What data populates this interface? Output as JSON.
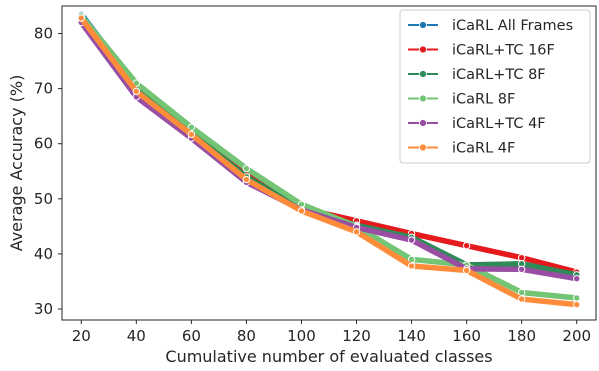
{
  "chart_data": {
    "type": "line",
    "xlabel": "Cumulative number of evaluated classes",
    "ylabel": "Average Accuracy (%)",
    "x": [
      20,
      40,
      60,
      80,
      100,
      120,
      140,
      160,
      180,
      200
    ],
    "xlim": [
      13,
      207
    ],
    "ylim": [
      28,
      85
    ],
    "xticks": [
      20,
      40,
      60,
      80,
      100,
      120,
      140,
      160,
      180,
      200
    ],
    "yticks": [
      30,
      40,
      50,
      60,
      70,
      80
    ],
    "grid": false,
    "legend_position": "top-right",
    "series": [
      {
        "name": "iCaRL All Frames",
        "color": "#1f77b4",
        "values": [
          83.5,
          70.5,
          62.5,
          54.5,
          48.5,
          45.5,
          43.0,
          38.0,
          38.0,
          36.5
        ]
      },
      {
        "name": "iCaRL+TC 16F",
        "color": "#e41a1c",
        "values": [
          83.0,
          70.5,
          62.5,
          54.5,
          48.3,
          46.0,
          43.7,
          41.5,
          39.3,
          36.7
        ]
      },
      {
        "name": "iCaRL+TC 8F",
        "color": "#2e8b57",
        "values": [
          82.5,
          70.0,
          62.0,
          54.0,
          48.2,
          45.2,
          43.0,
          38.0,
          38.2,
          36.2
        ]
      },
      {
        "name": "iCaRL 8F",
        "color": "#74c476",
        "values": [
          83.2,
          71.0,
          63.0,
          55.5,
          49.0,
          45.0,
          39.0,
          38.0,
          33.0,
          32.0
        ]
      },
      {
        "name": "iCaRL+TC 4F",
        "color": "#984ea3",
        "values": [
          82.0,
          68.5,
          61.0,
          53.0,
          48.0,
          44.8,
          42.5,
          37.3,
          37.2,
          35.5
        ]
      },
      {
        "name": "iCaRL 4F",
        "color": "#ff8c3a",
        "values": [
          82.8,
          69.5,
          61.7,
          53.5,
          47.8,
          44.0,
          37.8,
          37.0,
          31.8,
          30.8
        ]
      }
    ]
  }
}
